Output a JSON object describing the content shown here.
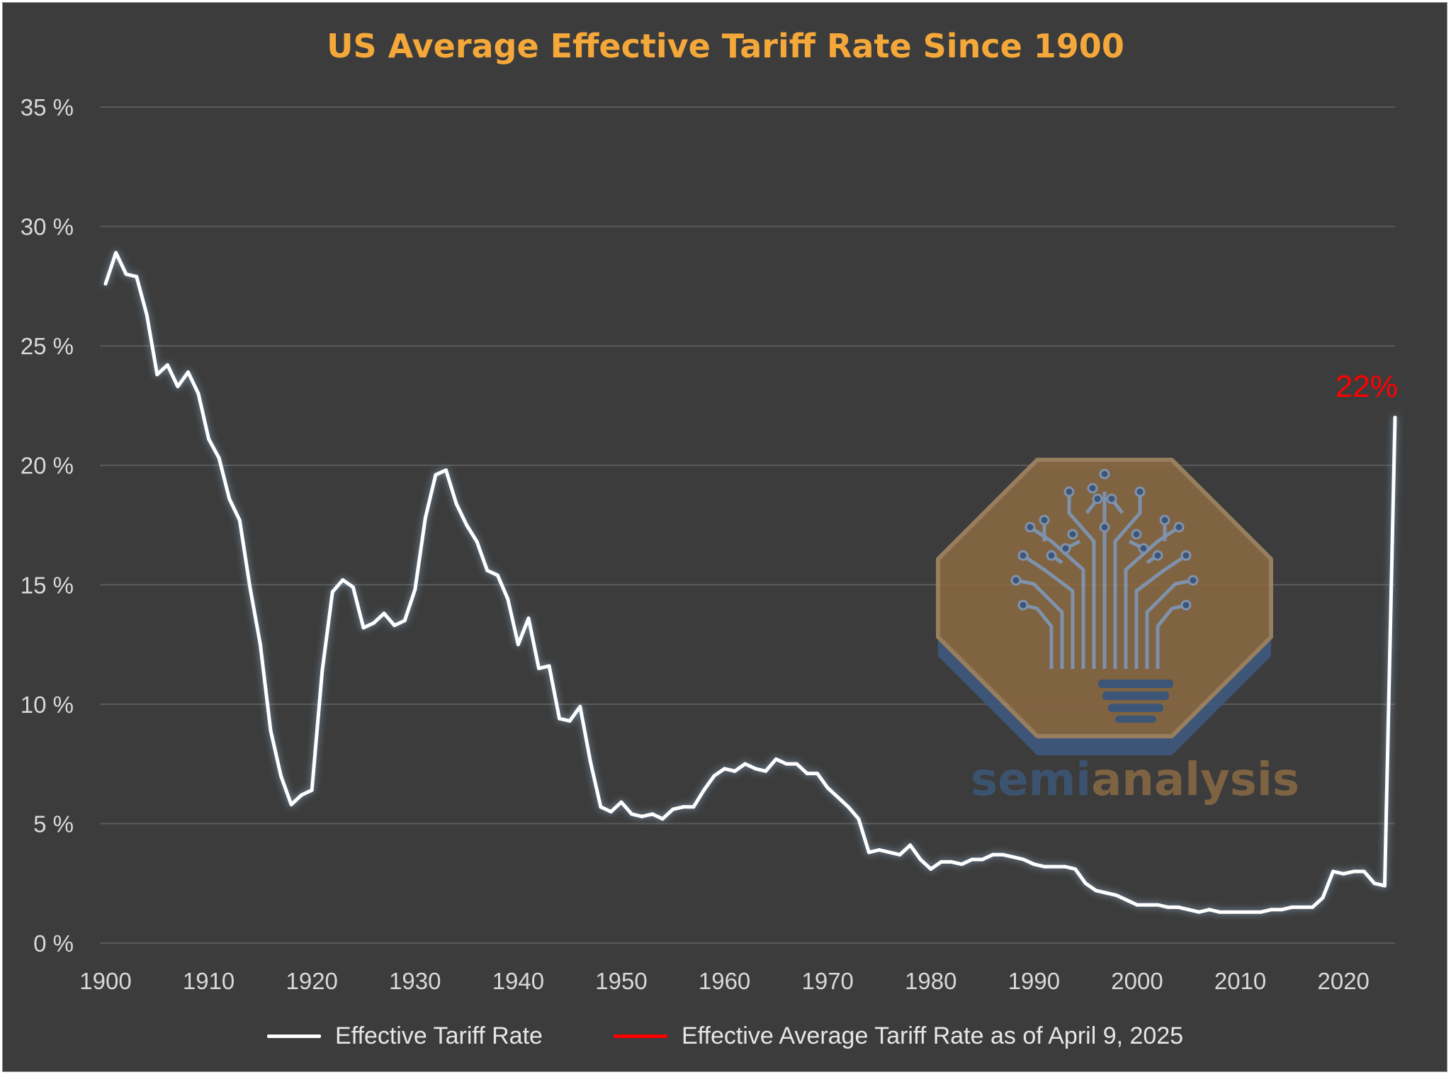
{
  "chart_data": {
    "type": "line",
    "title": "US Average Effective Tariff Rate Since 1900",
    "xlabel": "",
    "ylabel": "",
    "xlim": [
      1900,
      2025
    ],
    "ylim": [
      0,
      35
    ],
    "x_ticks": [
      1900,
      1910,
      1920,
      1930,
      1940,
      1950,
      1960,
      1970,
      1980,
      1990,
      2000,
      2010,
      2020
    ],
    "y_ticks": [
      0,
      5,
      10,
      15,
      20,
      25,
      30,
      35
    ],
    "y_tick_labels": [
      "0 %",
      "5 %",
      "10 %",
      "15 %",
      "20 %",
      "25 %",
      "30 %",
      "35 %"
    ],
    "grid": "horizontal",
    "legend_position": "bottom",
    "series": [
      {
        "name": "Effective Tariff Rate",
        "color": "#ffffff",
        "x": [
          1900,
          1901,
          1902,
          1903,
          1904,
          1905,
          1906,
          1907,
          1908,
          1909,
          1910,
          1911,
          1912,
          1913,
          1914,
          1915,
          1916,
          1917,
          1918,
          1919,
          1920,
          1921,
          1922,
          1923,
          1924,
          1925,
          1926,
          1927,
          1928,
          1929,
          1930,
          1931,
          1932,
          1933,
          1934,
          1935,
          1936,
          1937,
          1938,
          1939,
          1940,
          1941,
          1942,
          1943,
          1944,
          1945,
          1946,
          1947,
          1948,
          1949,
          1950,
          1951,
          1952,
          1953,
          1954,
          1955,
          1956,
          1957,
          1958,
          1959,
          1960,
          1961,
          1962,
          1963,
          1964,
          1965,
          1966,
          1967,
          1968,
          1969,
          1970,
          1971,
          1972,
          1973,
          1974,
          1975,
          1976,
          1977,
          1978,
          1979,
          1980,
          1981,
          1982,
          1983,
          1984,
          1985,
          1986,
          1987,
          1988,
          1989,
          1990,
          1991,
          1992,
          1993,
          1994,
          1995,
          1996,
          1997,
          1998,
          1999,
          2000,
          2001,
          2002,
          2003,
          2004,
          2005,
          2006,
          2007,
          2008,
          2009,
          2010,
          2011,
          2012,
          2013,
          2014,
          2015,
          2016,
          2017,
          2018,
          2019,
          2020,
          2021,
          2022,
          2023,
          2024,
          2025
        ],
        "values": [
          27.6,
          28.9,
          28.0,
          27.9,
          26.3,
          23.8,
          24.2,
          23.3,
          23.9,
          23.0,
          21.1,
          20.3,
          18.6,
          17.7,
          14.9,
          12.5,
          8.9,
          7.0,
          5.8,
          6.2,
          6.4,
          11.4,
          14.7,
          15.2,
          14.9,
          13.2,
          13.4,
          13.8,
          13.3,
          13.5,
          14.8,
          17.8,
          19.6,
          19.8,
          18.4,
          17.5,
          16.8,
          15.6,
          15.4,
          14.4,
          12.5,
          13.6,
          11.5,
          11.6,
          9.4,
          9.3,
          9.9,
          7.6,
          5.7,
          5.5,
          5.9,
          5.4,
          5.3,
          5.4,
          5.2,
          5.6,
          5.7,
          5.7,
          6.4,
          7.0,
          7.3,
          7.2,
          7.5,
          7.3,
          7.2,
          7.7,
          7.5,
          7.5,
          7.1,
          7.1,
          6.5,
          6.1,
          5.7,
          5.2,
          3.8,
          3.9,
          3.8,
          3.7,
          4.1,
          3.5,
          3.1,
          3.4,
          3.4,
          3.3,
          3.5,
          3.5,
          3.7,
          3.7,
          3.6,
          3.5,
          3.3,
          3.2,
          3.2,
          3.2,
          3.1,
          2.5,
          2.2,
          2.1,
          2.0,
          1.8,
          1.6,
          1.6,
          1.6,
          1.5,
          1.5,
          1.4,
          1.3,
          1.4,
          1.3,
          1.3,
          1.3,
          1.3,
          1.3,
          1.4,
          1.4,
          1.5,
          1.5,
          1.5,
          1.9,
          3.0,
          2.9,
          3.0,
          3.0,
          2.5,
          2.4,
          22.0
        ]
      },
      {
        "name": "Effective Average Tariff Rate as of April 9, 2025",
        "color": "#ff0000",
        "constant": 22.4
      }
    ],
    "annotations": [
      {
        "text": "22%",
        "x": 2025,
        "y": 22.4,
        "color": "#ff0000"
      }
    ]
  },
  "watermark": {
    "text_part1": "semi",
    "text_part2": "analysis",
    "color_part1": "#3d5878",
    "color_part2": "#8a6a45"
  }
}
